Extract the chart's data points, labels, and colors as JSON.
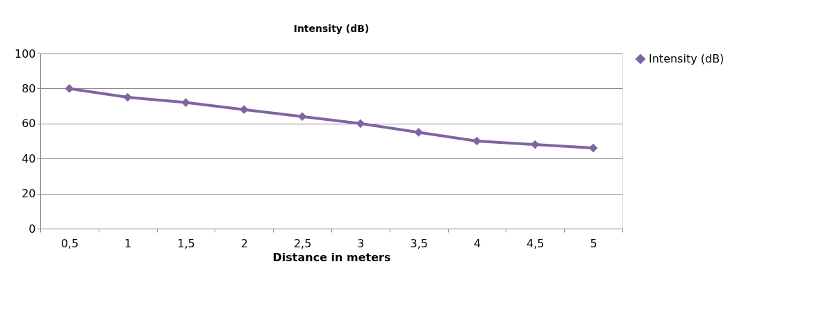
{
  "chart_data": {
    "type": "line",
    "title": "Intensity (dB)",
    "xlabel": "Distance in meters",
    "categories": [
      "0,5",
      "1",
      "1,5",
      "2",
      "2,5",
      "3",
      "3,5",
      "4",
      "4,5",
      "5"
    ],
    "series": [
      {
        "name": "Intensity (dB)",
        "color": "#8064a2",
        "values": [
          80,
          75,
          72,
          68,
          64,
          60,
          55,
          50,
          48,
          46
        ]
      }
    ],
    "ylim": [
      0,
      100
    ],
    "yticks": [
      0,
      20,
      40,
      60,
      80,
      100
    ],
    "grid": "y",
    "legend": "right",
    "marker": "diamond",
    "line_style": "solid"
  }
}
